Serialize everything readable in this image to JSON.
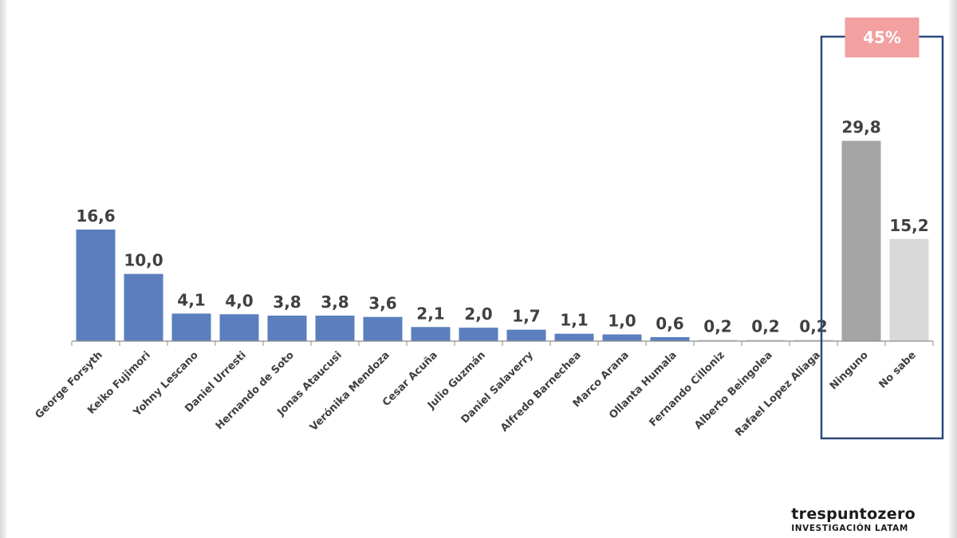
{
  "chart_data": {
    "type": "bar",
    "categories": [
      "George Forsyth",
      "Keiko Fujimori",
      "Yohny Lescano",
      "Daniel Urresti",
      "Hernando de Soto",
      "Jonas Ataucusi",
      "Verónika Mendoza",
      "Cesar Acuña",
      "Julio Guzmán",
      "Daniel Salaverry",
      "Alfredo Barnechea",
      "Marco Arana",
      "Ollanta Humala",
      "Fernando Cilloniz",
      "Alberto Beingolea",
      "Rafael Lopez Aliaga",
      "Ninguno",
      "No sabe"
    ],
    "values": [
      16.6,
      10.0,
      4.1,
      4.0,
      3.8,
      3.8,
      3.6,
      2.1,
      2.0,
      1.7,
      1.1,
      1.0,
      0.6,
      0.2,
      0.2,
      0.2,
      29.8,
      15.2
    ],
    "data_labels": [
      "16,6",
      "10,0",
      "4,1",
      "4,0",
      "3,8",
      "3,8",
      "3,6",
      "2,1",
      "2,0",
      "1,7",
      "1,1",
      "1,0",
      "0,6",
      "0,2",
      "0,2",
      "0,2",
      "29,8",
      "15,2"
    ],
    "bar_colors": [
      "#5b7fbe",
      "#5b7fbe",
      "#5b7fbe",
      "#5b7fbe",
      "#5b7fbe",
      "#5b7fbe",
      "#5b7fbe",
      "#5b7fbe",
      "#5b7fbe",
      "#5b7fbe",
      "#5b7fbe",
      "#5b7fbe",
      "#5b7fbe",
      "#d4d4d4",
      "#d4d4d4",
      "#d4d4d4",
      "#a5a5a5",
      "#d9d9d9"
    ],
    "ylim": [
      0,
      30
    ],
    "grid": false,
    "highlight": {
      "label": "45%",
      "categories": [
        "Ninguno",
        "No sabe"
      ],
      "box_color": "#2e4a7d",
      "label_color": "#f2a0a0"
    }
  },
  "brand": {
    "name": "trespuntozero",
    "subtitle": "INVESTIGACIÓN LATAM"
  }
}
